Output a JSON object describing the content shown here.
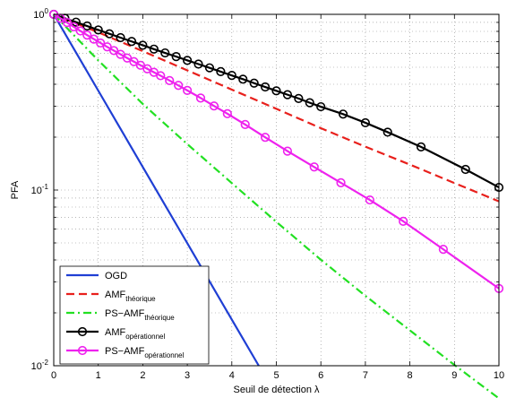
{
  "chart_data": {
    "type": "line",
    "xlabel": "Seuil de détection λ",
    "ylabel": "PFA",
    "xlim": [
      0,
      10
    ],
    "ylim": [
      0.01,
      1
    ],
    "y_scale": "log",
    "grid": true,
    "grid_style": "dotted",
    "legend_position": "bottom-left",
    "x_ticks": [
      "0",
      "1",
      "2",
      "3",
      "4",
      "5",
      "6",
      "7",
      "8",
      "9",
      "10"
    ],
    "y_ticks": [
      {
        "base": "10",
        "exp": "0",
        "value": 1
      },
      {
        "base": "10",
        "exp": "-1",
        "value": 0.1
      },
      {
        "base": "10",
        "exp": "-2",
        "value": 0.01
      }
    ],
    "series": [
      {
        "name": "OGD",
        "sub": "",
        "color": "#1f3fd4",
        "style": "solid",
        "marker": "none",
        "points": [
          [
            0,
            1
          ],
          [
            0.5,
            0.6065
          ],
          [
            1,
            0.3679
          ],
          [
            1.5,
            0.2231
          ],
          [
            2,
            0.1353
          ],
          [
            2.5,
            0.0821
          ],
          [
            3,
            0.0498
          ],
          [
            3.5,
            0.0302
          ],
          [
            4,
            0.0183
          ],
          [
            4.605,
            0.01
          ]
        ]
      },
      {
        "name": "AMF",
        "sub": "théorique",
        "color": "#e8201c",
        "style": "dashed",
        "marker": "none",
        "points": [
          [
            0,
            1
          ],
          [
            1,
            0.79
          ],
          [
            2,
            0.617
          ],
          [
            3,
            0.48
          ],
          [
            4,
            0.373
          ],
          [
            5,
            0.29
          ],
          [
            6,
            0.225
          ],
          [
            7,
            0.1765
          ],
          [
            8,
            0.1396
          ],
          [
            9,
            0.1096
          ],
          [
            10,
            0.0862
          ]
        ]
      },
      {
        "name": "PS−AMF",
        "sub": "théorique",
        "color": "#22e022",
        "style": "dashdot",
        "marker": "none",
        "points": [
          [
            0,
            1
          ],
          [
            1,
            0.547
          ],
          [
            2,
            0.309
          ],
          [
            3,
            0.1825
          ],
          [
            4,
            0.1095
          ],
          [
            5,
            0.0659
          ],
          [
            6,
            0.0401
          ],
          [
            7,
            0.025
          ],
          [
            8,
            0.0159
          ],
          [
            9,
            0.0101
          ],
          [
            10,
            0.00652
          ]
        ]
      },
      {
        "name": "AMF",
        "sub": "opérationnel",
        "color": "#000000",
        "style": "solid",
        "marker": "circle",
        "points": [
          [
            0,
            1
          ],
          [
            0.25,
            0.95
          ],
          [
            0.5,
            0.903
          ],
          [
            0.75,
            0.858
          ],
          [
            1,
            0.815
          ],
          [
            1.25,
            0.775
          ],
          [
            1.5,
            0.737
          ],
          [
            1.75,
            0.701
          ],
          [
            2,
            0.667
          ],
          [
            2.25,
            0.634
          ],
          [
            2.5,
            0.603
          ],
          [
            2.75,
            0.575
          ],
          [
            3,
            0.547
          ],
          [
            3.25,
            0.521
          ],
          [
            3.5,
            0.496
          ],
          [
            3.75,
            0.472
          ],
          [
            4,
            0.449
          ],
          [
            4.25,
            0.4275
          ],
          [
            4.5,
            0.406
          ],
          [
            4.75,
            0.386
          ],
          [
            5,
            0.367
          ],
          [
            5.25,
            0.349
          ],
          [
            5.5,
            0.332
          ],
          [
            5.75,
            0.314
          ],
          [
            6,
            0.298
          ],
          [
            6.5,
            0.2705
          ],
          [
            7,
            0.2415
          ],
          [
            7.5,
            0.2135
          ],
          [
            8.25,
            0.176
          ],
          [
            9.25,
            0.131
          ],
          [
            10,
            0.1035
          ]
        ]
      },
      {
        "name": "PS−AMF",
        "sub": "opérationnel",
        "color": "#ee22ee",
        "style": "solid",
        "marker": "circle",
        "points": [
          [
            0,
            1
          ],
          [
            0.15,
            0.95
          ],
          [
            0.3,
            0.898
          ],
          [
            0.45,
            0.849
          ],
          [
            0.6,
            0.804
          ],
          [
            0.75,
            0.762
          ],
          [
            0.9,
            0.723
          ],
          [
            1.05,
            0.687
          ],
          [
            1.2,
            0.653
          ],
          [
            1.35,
            0.622
          ],
          [
            1.5,
            0.592
          ],
          [
            1.65,
            0.564
          ],
          [
            1.8,
            0.538
          ],
          [
            1.95,
            0.513
          ],
          [
            2.1,
            0.49
          ],
          [
            2.25,
            0.468
          ],
          [
            2.4,
            0.4475
          ],
          [
            2.6,
            0.42
          ],
          [
            2.8,
            0.394
          ],
          [
            3,
            0.369
          ],
          [
            3.3,
            0.334
          ],
          [
            3.6,
            0.301
          ],
          [
            3.9,
            0.272
          ],
          [
            4.3,
            0.236
          ],
          [
            4.75,
            0.1995
          ],
          [
            5.25,
            0.1665
          ],
          [
            5.85,
            0.1353
          ],
          [
            6.45,
            0.11
          ],
          [
            7.1,
            0.0878
          ],
          [
            7.85,
            0.0664
          ],
          [
            8.75,
            0.046
          ],
          [
            10,
            0.0275
          ]
        ]
      }
    ]
  }
}
